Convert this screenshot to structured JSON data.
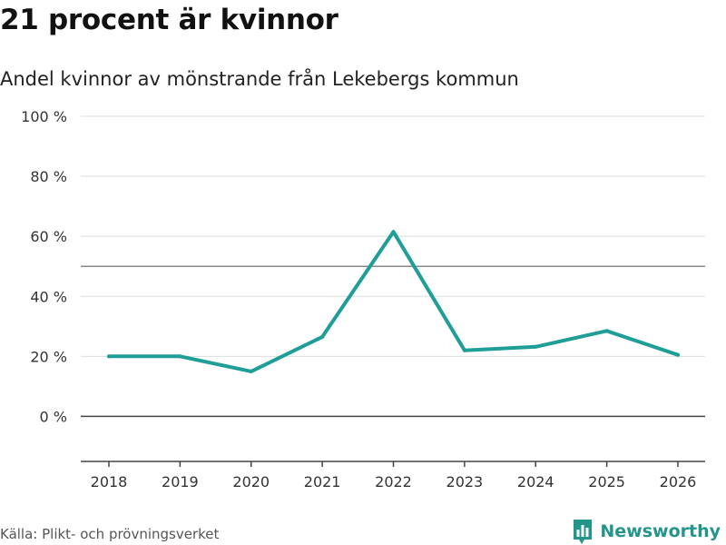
{
  "header": {
    "title": "21 procent är kvinnor",
    "subtitle": "Andel kvinnor av mönstrande från Lekebergs kommun"
  },
  "footer": {
    "source": "Källa: Plikt- och prövningsverket",
    "brand": "Newsworthy",
    "brand_icon": "bar-chart-logo-icon"
  },
  "colors": {
    "line": "#1f9e97",
    "brand": "#23968c",
    "grid": "#dddddd",
    "reference": "#888888",
    "zero_axis": "#444444"
  },
  "chart_data": {
    "type": "line",
    "title": "21 procent är kvinnor",
    "subtitle": "Andel kvinnor av mönstrande från Lekebergs kommun",
    "xlabel": "",
    "ylabel": "",
    "x": [
      2018,
      2019,
      2020,
      2021,
      2022,
      2023,
      2024,
      2025,
      2026
    ],
    "x_tick_labels": [
      "2018",
      "2019",
      "2020",
      "2021",
      "2022",
      "2023",
      "2024",
      "2025",
      "2026"
    ],
    "series": [
      {
        "name": "Andel kvinnor",
        "values": [
          20,
          20,
          15,
          26.5,
          61.5,
          22,
          23.2,
          28.5,
          20.5
        ]
      }
    ],
    "ylim": [
      -15,
      100
    ],
    "y_ticks": [
      0,
      20,
      40,
      60,
      80,
      100
    ],
    "y_tick_labels": [
      "0 %",
      "20 %",
      "40 %",
      "60 %",
      "80 %",
      "100 %"
    ],
    "reference_line": 50,
    "grid": true,
    "legend": "none"
  }
}
